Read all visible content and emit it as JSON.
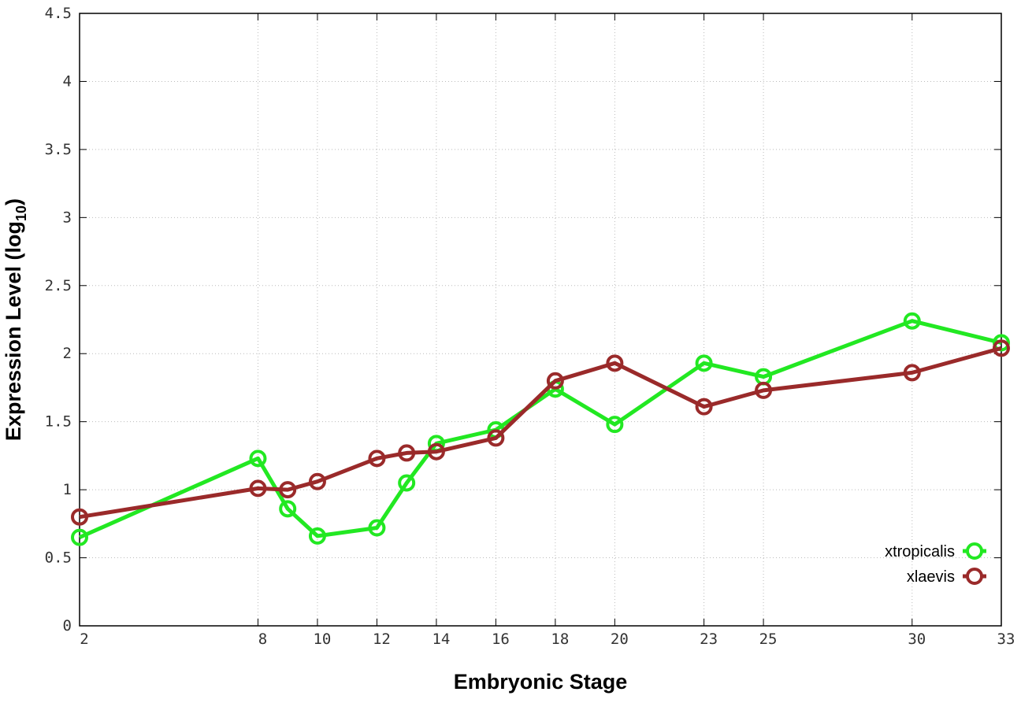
{
  "chart_data": {
    "type": "line",
    "title": "",
    "xlabel": "Embryonic Stage",
    "ylabel": "Expression Level (log",
    "ylabel_sub": "10",
    "ylabel_close": ")",
    "xlim": [
      2,
      33
    ],
    "ylim": [
      0,
      4.5
    ],
    "x": [
      2,
      8,
      9,
      10,
      12,
      13,
      14,
      16,
      18,
      20,
      23,
      25,
      30,
      33
    ],
    "x_tick_labels": [
      "2",
      "8",
      "10",
      "12",
      "14",
      "16",
      "18",
      "20",
      "23",
      "25",
      "30",
      "33"
    ],
    "x_ticks": [
      2,
      8,
      10,
      12,
      14,
      16,
      18,
      20,
      23,
      25,
      30,
      33
    ],
    "y_ticks": [
      0,
      0.5,
      1,
      1.5,
      2,
      2.5,
      3,
      3.5,
      4,
      4.5
    ],
    "y_tick_labels": [
      "0",
      "0.5",
      "1",
      "1.5",
      "2",
      "2.5",
      "3",
      "3.5",
      "4",
      "4.5"
    ],
    "grid": true,
    "legend_position": "bottom-right",
    "series": [
      {
        "name": "xtropicalis",
        "color": "#22e822",
        "values": [
          0.65,
          1.23,
          0.86,
          0.66,
          0.72,
          1.05,
          1.34,
          1.44,
          1.74,
          1.48,
          1.93,
          1.83,
          2.24,
          2.08
        ]
      },
      {
        "name": "xlaevis",
        "color": "#9a2a2a",
        "values": [
          0.8,
          1.01,
          1.0,
          1.06,
          1.23,
          1.27,
          1.28,
          1.38,
          1.8,
          1.93,
          1.61,
          1.73,
          1.86,
          2.04
        ]
      }
    ]
  }
}
